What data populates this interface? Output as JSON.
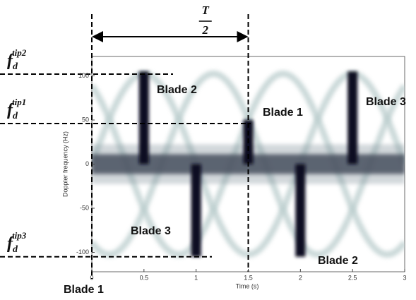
{
  "chart_data": {
    "type": "spectrogram",
    "xlabel": "Time (s)",
    "ylabel": "Doppler frequency (Hz)",
    "xlim": [
      0,
      3
    ],
    "ylim": [
      -122,
      122
    ],
    "xticks": [
      0,
      0.5,
      1,
      1.5,
      2,
      2.5,
      3
    ],
    "yticks": [
      -100,
      -50,
      0,
      50,
      100
    ],
    "flashes": [
      {
        "time": 0.5,
        "fmin": 0,
        "fmax": 105
      },
      {
        "time": 1,
        "fmin": -105,
        "fmax": 0
      },
      {
        "time": 1.5,
        "fmin": 0,
        "fmax": 50
      },
      {
        "time": 2,
        "fmin": -105,
        "fmax": 0
      },
      {
        "time": 2.5,
        "fmin": 0,
        "fmax": 105
      }
    ],
    "reference_levels": [
      {
        "base": "f",
        "sub": "d",
        "sup": "tip2",
        "value": 102
      },
      {
        "base": "f",
        "sub": "d",
        "sup": "tip1",
        "value": 46
      },
      {
        "base": "f",
        "sub": "d",
        "sup": "tip3",
        "value": -105
      }
    ],
    "reference_times": [
      0,
      1.5
    ],
    "period_label": {
      "numerator": "T",
      "denominator": "2"
    },
    "annotations": [
      "Blade 2",
      "Blade 1",
      "Blade 3",
      "Blade 3",
      "Blade 2",
      "Blade 1"
    ]
  }
}
